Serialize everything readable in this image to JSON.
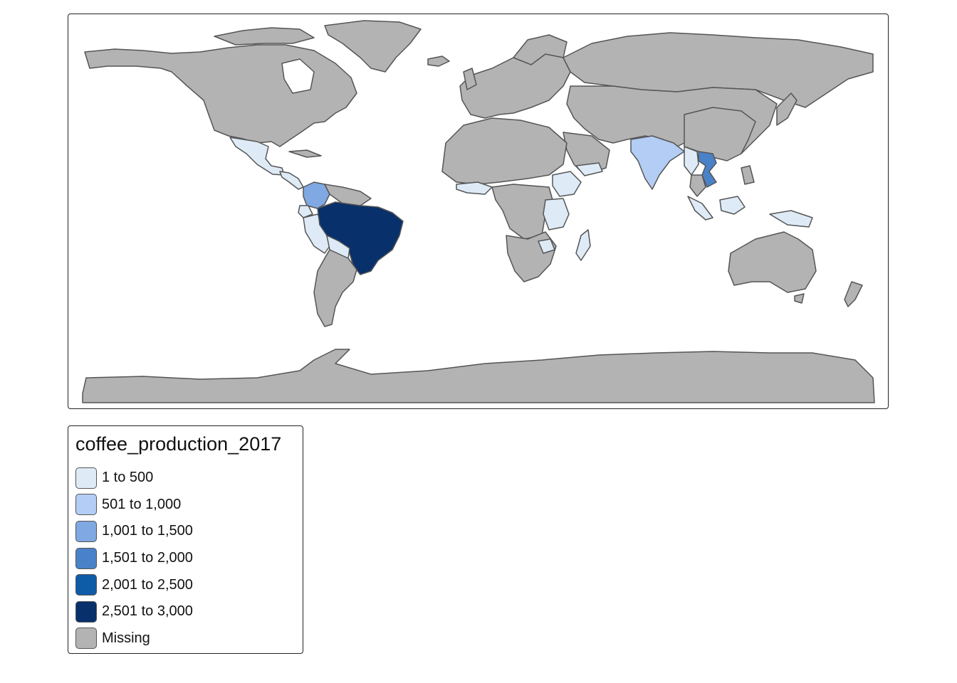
{
  "colors": {
    "missing": "#b3b3b3",
    "c1": "#deebf7",
    "c2": "#b3cdf5",
    "c3": "#80a8e2",
    "c4": "#4a82c9",
    "c5": "#0e5ba8",
    "c6": "#08306b",
    "border": "#555555"
  },
  "legend": {
    "title": "coffee_production_2017",
    "items": [
      {
        "label": "1 to 500",
        "color": "#deebf7"
      },
      {
        "label": "501 to 1,000",
        "color": "#b3cdf5"
      },
      {
        "label": "1,001 to 1,500",
        "color": "#80a8e2"
      },
      {
        "label": "1,501 to 2,000",
        "color": "#4a82c9"
      },
      {
        "label": "2,001 to 2,500",
        "color": "#0e5ba8"
      },
      {
        "label": "2,501 to 3,000",
        "color": "#08306b"
      },
      {
        "label": "Missing",
        "color": "#b3b3b3"
      }
    ]
  }
}
